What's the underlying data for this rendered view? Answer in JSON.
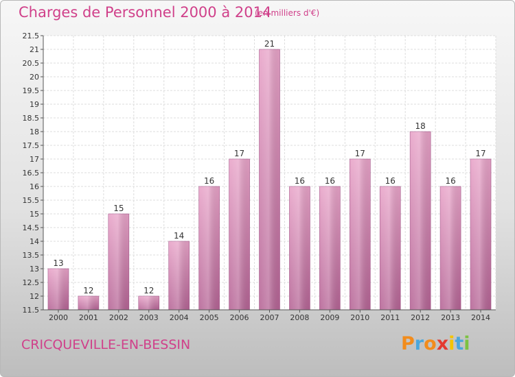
{
  "header": {
    "title": "Charges de Personnel 2000 à 2014",
    "units": "(en milliers d'€)"
  },
  "footer": {
    "city": "CRICQUEVILLE-EN-BESSIN",
    "logo_text": "Proxiti",
    "logo_colors": [
      "#f28c1c",
      "#4aa7dc",
      "#f28c1c",
      "#e43a2f",
      "#f5c400",
      "#4aa7dc",
      "#7cc242"
    ]
  },
  "chart_data": {
    "type": "bar",
    "categories": [
      "2000",
      "2001",
      "2002",
      "2003",
      "2004",
      "2005",
      "2006",
      "2007",
      "2008",
      "2009",
      "2010",
      "2011",
      "2012",
      "2013",
      "2014"
    ],
    "values": [
      13,
      12,
      15,
      12,
      14,
      16,
      17,
      21,
      16,
      16,
      17,
      16,
      18,
      16,
      17
    ],
    "value_labels": [
      "13",
      "12",
      "15",
      "12",
      "14",
      "16",
      "17",
      "21",
      "16",
      "16",
      "17",
      "16",
      "18",
      "16",
      "17"
    ],
    "ylim": [
      11.5,
      21.5
    ],
    "yticks": [
      11.5,
      12,
      12.5,
      13,
      13.5,
      14,
      14.5,
      15,
      15.5,
      16,
      16.5,
      17,
      17.5,
      18,
      18.5,
      19,
      19.5,
      20,
      20.5,
      21,
      21.5
    ],
    "ytick_labels": [
      "11.5",
      "12",
      "12.5",
      "13",
      "13.5",
      "14",
      "14.5",
      "15",
      "15.5",
      "16",
      "16.5",
      "17",
      "17.5",
      "18",
      "18.5",
      "19",
      "19.5",
      "20",
      "20.5",
      "21",
      "21.5"
    ],
    "grid": true,
    "bar_color": "#d67aa9"
  }
}
